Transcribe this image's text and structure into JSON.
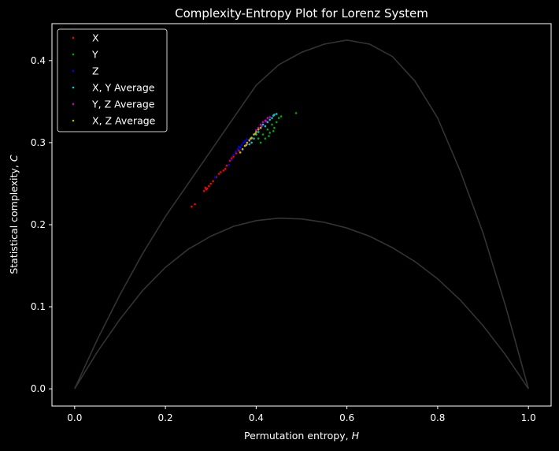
{
  "chart_data": {
    "type": "scatter",
    "title": "Complexity-Entropy Plot for Lorenz System",
    "xlabel": "Permutation entropy, ",
    "xlabel_var": "H",
    "ylabel": "Statistical complexity, ",
    "ylabel_var": "C",
    "xlim": [
      -0.05,
      1.05
    ],
    "ylim": [
      -0.021,
      0.445
    ],
    "xticks": [
      0.0,
      0.2,
      0.4,
      0.6,
      0.8,
      1.0
    ],
    "xtick_labels": [
      "0.0",
      "0.2",
      "0.4",
      "0.6",
      "0.8",
      "1.0"
    ],
    "yticks": [
      0.0,
      0.1,
      0.2,
      0.3,
      0.4
    ],
    "ytick_labels": [
      "0.0",
      "0.1",
      "0.2",
      "0.3",
      "0.4"
    ],
    "grid": false,
    "legend_position": "top-left",
    "background": "#000000",
    "boundary_color": "#333333",
    "boundaries": {
      "upper": [
        [
          0.0,
          0.0
        ],
        [
          0.05,
          0.06
        ],
        [
          0.1,
          0.115
        ],
        [
          0.15,
          0.165
        ],
        [
          0.2,
          0.21
        ],
        [
          0.25,
          0.25
        ],
        [
          0.3,
          0.29
        ],
        [
          0.35,
          0.33
        ],
        [
          0.4,
          0.37
        ],
        [
          0.45,
          0.395
        ],
        [
          0.5,
          0.41
        ],
        [
          0.55,
          0.42
        ],
        [
          0.6,
          0.425
        ],
        [
          0.65,
          0.42
        ],
        [
          0.7,
          0.405
        ],
        [
          0.75,
          0.375
        ],
        [
          0.8,
          0.33
        ],
        [
          0.85,
          0.265
        ],
        [
          0.9,
          0.19
        ],
        [
          0.95,
          0.1
        ],
        [
          0.98,
          0.04
        ],
        [
          1.0,
          0.0
        ]
      ],
      "lower": [
        [
          0.0,
          0.0
        ],
        [
          0.05,
          0.045
        ],
        [
          0.1,
          0.085
        ],
        [
          0.15,
          0.12
        ],
        [
          0.2,
          0.148
        ],
        [
          0.25,
          0.17
        ],
        [
          0.3,
          0.186
        ],
        [
          0.35,
          0.198
        ],
        [
          0.4,
          0.205
        ],
        [
          0.45,
          0.208
        ],
        [
          0.5,
          0.207
        ],
        [
          0.55,
          0.203
        ],
        [
          0.6,
          0.196
        ],
        [
          0.65,
          0.186
        ],
        [
          0.7,
          0.172
        ],
        [
          0.75,
          0.155
        ],
        [
          0.8,
          0.134
        ],
        [
          0.85,
          0.108
        ],
        [
          0.9,
          0.077
        ],
        [
          0.95,
          0.041
        ],
        [
          1.0,
          0.0
        ]
      ]
    },
    "series": [
      {
        "name": "X",
        "color": "#ff0000",
        "points": [
          [
            0.258,
            0.222
          ],
          [
            0.265,
            0.225
          ],
          [
            0.285,
            0.241
          ],
          [
            0.288,
            0.245
          ],
          [
            0.292,
            0.244
          ],
          [
            0.296,
            0.247
          ],
          [
            0.305,
            0.253
          ],
          [
            0.312,
            0.258
          ],
          [
            0.318,
            0.262
          ],
          [
            0.322,
            0.264
          ],
          [
            0.328,
            0.266
          ],
          [
            0.335,
            0.272
          ],
          [
            0.342,
            0.278
          ],
          [
            0.346,
            0.281
          ],
          [
            0.35,
            0.283
          ],
          [
            0.356,
            0.287
          ],
          [
            0.362,
            0.29
          ],
          [
            0.29,
            0.243
          ],
          [
            0.3,
            0.25
          ],
          [
            0.332,
            0.268
          ]
        ]
      },
      {
        "name": "Y",
        "color": "#00aa00",
        "points": [
          [
            0.488,
            0.336
          ],
          [
            0.445,
            0.325
          ],
          [
            0.44,
            0.318
          ],
          [
            0.43,
            0.312
          ],
          [
            0.425,
            0.316
          ],
          [
            0.435,
            0.322
          ],
          [
            0.42,
            0.305
          ],
          [
            0.415,
            0.31
          ],
          [
            0.41,
            0.3
          ],
          [
            0.405,
            0.305
          ],
          [
            0.45,
            0.33
          ],
          [
            0.455,
            0.332
          ],
          [
            0.438,
            0.314
          ],
          [
            0.428,
            0.308
          ]
        ]
      },
      {
        "name": "Z",
        "color": "#0000ff",
        "points": [
          [
            0.34,
            0.273
          ],
          [
            0.345,
            0.279
          ],
          [
            0.35,
            0.285
          ],
          [
            0.355,
            0.289
          ],
          [
            0.36,
            0.292
          ],
          [
            0.365,
            0.294
          ],
          [
            0.368,
            0.297
          ],
          [
            0.372,
            0.3
          ],
          [
            0.375,
            0.302
          ],
          [
            0.378,
            0.298
          ],
          [
            0.37,
            0.291
          ],
          [
            0.362,
            0.295
          ],
          [
            0.38,
            0.304
          ],
          [
            0.31,
            0.258
          ]
        ]
      },
      {
        "name": "X, Y Average",
        "color": "#00cccc",
        "points": [
          [
            0.42,
            0.32
          ],
          [
            0.425,
            0.325
          ],
          [
            0.43,
            0.328
          ],
          [
            0.435,
            0.33
          ],
          [
            0.44,
            0.334
          ],
          [
            0.445,
            0.335
          ],
          [
            0.41,
            0.318
          ],
          [
            0.415,
            0.322
          ],
          [
            0.405,
            0.313
          ],
          [
            0.4,
            0.31
          ],
          [
            0.395,
            0.305
          ],
          [
            0.39,
            0.3
          ],
          [
            0.385,
            0.298
          ],
          [
            0.438,
            0.333
          ]
        ]
      },
      {
        "name": "Y, Z Average",
        "color": "#cc00cc",
        "points": [
          [
            0.4,
            0.315
          ],
          [
            0.405,
            0.318
          ],
          [
            0.41,
            0.322
          ],
          [
            0.415,
            0.325
          ],
          [
            0.42,
            0.327
          ],
          [
            0.425,
            0.33
          ],
          [
            0.43,
            0.331
          ],
          [
            0.395,
            0.31
          ],
          [
            0.39,
            0.305
          ],
          [
            0.385,
            0.302
          ],
          [
            0.38,
            0.298
          ],
          [
            0.412,
            0.32
          ],
          [
            0.422,
            0.326
          ]
        ]
      },
      {
        "name": "X, Z Average",
        "color": "#bbbb00",
        "points": [
          [
            0.37,
            0.292
          ],
          [
            0.375,
            0.296
          ],
          [
            0.38,
            0.3
          ],
          [
            0.385,
            0.303
          ],
          [
            0.39,
            0.306
          ],
          [
            0.395,
            0.31
          ],
          [
            0.4,
            0.313
          ],
          [
            0.405,
            0.316
          ],
          [
            0.41,
            0.318
          ],
          [
            0.378,
            0.297
          ],
          [
            0.388,
            0.305
          ],
          [
            0.398,
            0.311
          ],
          [
            0.365,
            0.288
          ]
        ]
      }
    ]
  }
}
